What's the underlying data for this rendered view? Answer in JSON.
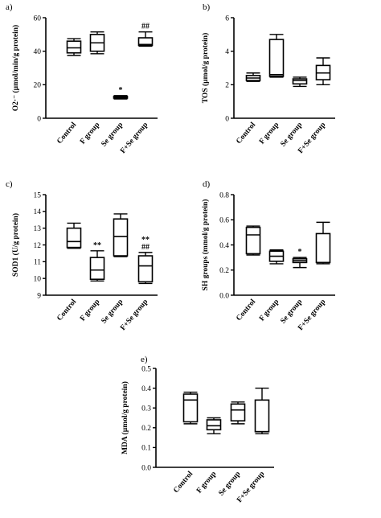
{
  "chart_data": [
    {
      "panel": "a)",
      "type": "boxplot",
      "ylabel": "O2·⁻ (µmol/min/g protein)",
      "ylim": [
        0,
        60
      ],
      "yticks": [
        0,
        20,
        40,
        60
      ],
      "categories": [
        "Control",
        "F group",
        "Se group",
        "F+Se group"
      ],
      "boxes": [
        {
          "min": 37.5,
          "q1": 39,
          "median": 42,
          "q3": 46,
          "max": 47.5,
          "annotation": ""
        },
        {
          "min": 38.5,
          "q1": 40,
          "median": 45,
          "q3": 50,
          "max": 51.5,
          "annotation": ""
        },
        {
          "min": 11.5,
          "q1": 12,
          "median": 12.5,
          "q3": 13,
          "max": 13.5,
          "annotation": "*"
        },
        {
          "min": 43,
          "q1": 43.5,
          "median": 44,
          "q3": 48,
          "max": 51.5,
          "annotation": "##"
        }
      ]
    },
    {
      "panel": "b)",
      "type": "boxplot",
      "ylabel": "TOS (µmol/g protein)",
      "ylim": [
        0,
        6
      ],
      "yticks": [
        0,
        2,
        4,
        6
      ],
      "categories": [
        "Control",
        "F group",
        "Se group",
        "F+Se group"
      ],
      "boxes": [
        {
          "min": 2.2,
          "q1": 2.25,
          "median": 2.4,
          "q3": 2.55,
          "max": 2.7,
          "annotation": ""
        },
        {
          "min": 2.45,
          "q1": 2.5,
          "median": 2.6,
          "q3": 4.7,
          "max": 5.0,
          "annotation": ""
        },
        {
          "min": 1.9,
          "q1": 2.05,
          "median": 2.25,
          "q3": 2.35,
          "max": 2.45,
          "annotation": ""
        },
        {
          "min": 2.0,
          "q1": 2.3,
          "median": 2.7,
          "q3": 3.15,
          "max": 3.6,
          "annotation": ""
        }
      ]
    },
    {
      "panel": "c)",
      "type": "boxplot",
      "ylabel": "SOD1 (U/g protein)",
      "ylim": [
        9,
        15
      ],
      "yticks": [
        9,
        10,
        11,
        12,
        13,
        14,
        15
      ],
      "categories": [
        "Control",
        "F group",
        "Se group",
        "F+Se group"
      ],
      "boxes": [
        {
          "min": 11.8,
          "q1": 11.85,
          "median": 12.2,
          "q3": 13.0,
          "max": 13.3,
          "annotation": ""
        },
        {
          "min": 9.85,
          "q1": 9.95,
          "median": 10.5,
          "q3": 11.25,
          "max": 11.65,
          "annotation": "**"
        },
        {
          "min": 11.3,
          "q1": 11.35,
          "median": 12.5,
          "q3": 13.55,
          "max": 13.85,
          "annotation": ""
        },
        {
          "min": 9.7,
          "q1": 9.8,
          "median": 10.75,
          "q3": 11.35,
          "max": 11.55,
          "annotation": "**\n##"
        }
      ]
    },
    {
      "panel": "d)",
      "type": "boxplot",
      "ylabel": "SH groups (mmol/g protein)",
      "ylim": [
        0,
        0.8
      ],
      "yticks": [
        0.0,
        0.2,
        0.4,
        0.6,
        0.8
      ],
      "categories": [
        "Control",
        "F group",
        "Se group",
        "F+Se group"
      ],
      "boxes": [
        {
          "min": 0.32,
          "q1": 0.33,
          "median": 0.48,
          "q3": 0.54,
          "max": 0.55,
          "annotation": ""
        },
        {
          "min": 0.25,
          "q1": 0.27,
          "median": 0.31,
          "q3": 0.35,
          "max": 0.36,
          "annotation": ""
        },
        {
          "min": 0.22,
          "q1": 0.26,
          "median": 0.275,
          "q3": 0.29,
          "max": 0.3,
          "annotation": "*"
        },
        {
          "min": 0.25,
          "q1": 0.26,
          "median": 0.26,
          "q3": 0.49,
          "max": 0.58,
          "annotation": ""
        }
      ]
    },
    {
      "panel": "e)",
      "type": "boxplot",
      "ylabel": "MDA (µmol/g protein)",
      "ylim": [
        0,
        0.5
      ],
      "yticks": [
        0.0,
        0.1,
        0.2,
        0.3,
        0.4,
        0.5
      ],
      "categories": [
        "Control",
        "F group",
        "Se group",
        "F+Se group"
      ],
      "boxes": [
        {
          "min": 0.22,
          "q1": 0.23,
          "median": 0.34,
          "q3": 0.37,
          "max": 0.38,
          "annotation": ""
        },
        {
          "min": 0.17,
          "q1": 0.19,
          "median": 0.21,
          "q3": 0.24,
          "max": 0.25,
          "annotation": ""
        },
        {
          "min": 0.22,
          "q1": 0.235,
          "median": 0.29,
          "q3": 0.32,
          "max": 0.33,
          "annotation": ""
        },
        {
          "min": 0.17,
          "q1": 0.18,
          "median": 0.18,
          "q3": 0.34,
          "max": 0.4,
          "annotation": ""
        }
      ]
    }
  ]
}
